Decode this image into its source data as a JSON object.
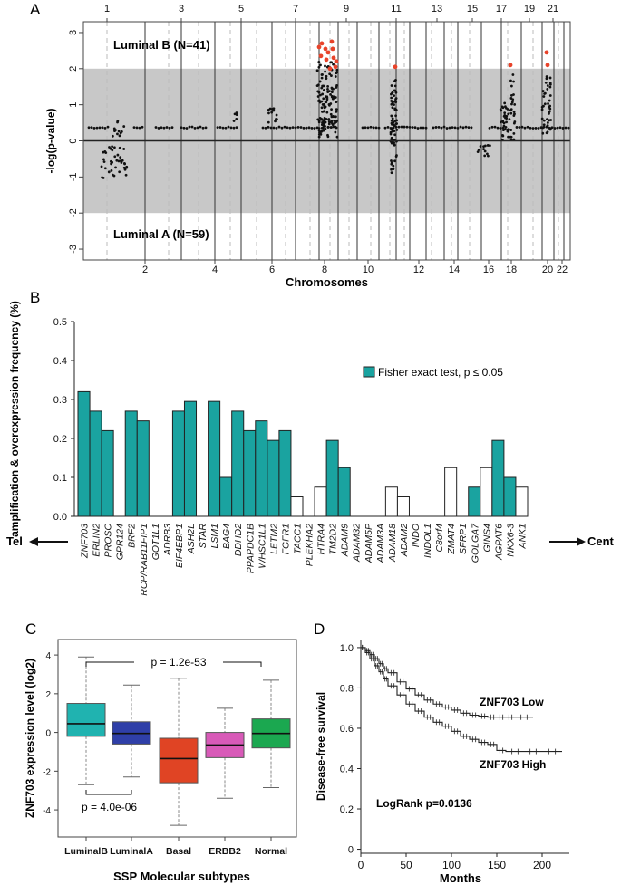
{
  "panels": {
    "a": "A",
    "b": "B",
    "c": "C",
    "d": "D"
  },
  "chart_data": [
    {
      "id": "A",
      "type": "scatter",
      "ylabel": "-log(p-value)",
      "xlabel": "Chromosomes",
      "ylim": [
        -3.3,
        3.3
      ],
      "yticks": [
        -3,
        -2,
        -1,
        0,
        1,
        2,
        3
      ],
      "band": [
        -2,
        2
      ],
      "top_label": "Luminal B (N=41)",
      "bottom_label": "Luminal A (N=59)",
      "chrom_top_labels": [
        "1",
        "3",
        "5",
        "7",
        "9",
        "11",
        "13",
        "15",
        "17",
        "19",
        "21"
      ],
      "chrom_bottom_labels": [
        "2",
        "4",
        "6",
        "8",
        "10",
        "12",
        "14",
        "16",
        "18",
        "20",
        "22"
      ],
      "highlight_color": "#e8432a",
      "band_color": "#c8c8c8"
    },
    {
      "id": "B",
      "type": "bar",
      "ylabel": "amplification & overexpression frequency (%)",
      "ylim": [
        0,
        0.5
      ],
      "yticks": [
        "0.0",
        "0.1",
        "0.2",
        "0.3",
        "0.4",
        "0.5"
      ],
      "legend": "Fisher exact test, p ≤ 0.05",
      "left_arrow": "Tel",
      "right_arrow": "Cent",
      "sig_color": "#1aa3a0",
      "categories": [
        "ZNF703",
        "ERLIN2",
        "PROSC",
        "GPR124",
        "BRF2",
        "RCP/RAB11FIP1",
        "GOT1L1",
        "ADRB3",
        "EIF4EBP1",
        "ASH2L",
        "STAR",
        "LSM1",
        "BAG4",
        "DDHD2",
        "PPAPDC1B",
        "WHSC1L1",
        "LETM2",
        "FGFR1",
        "TACC1",
        "PLEKHA2",
        "HTRA4",
        "TM2D2",
        "ADAM9",
        "ADAM32",
        "ADAM5P",
        "ADAM3A",
        "ADAM18",
        "ADAM2",
        "INDO",
        "INDOL1",
        "C8orf4",
        "ZMAT4",
        "SFRP1",
        "GOLGA7",
        "GINS4",
        "AGPAT6",
        "NKX6-3",
        "ANK1"
      ],
      "values": [
        0.32,
        0.27,
        0.22,
        0,
        0.27,
        0.245,
        0,
        0,
        0.27,
        0.295,
        0,
        0.295,
        0.1,
        0.27,
        0.22,
        0.245,
        0.195,
        0.22,
        0.05,
        0,
        0.075,
        0.195,
        0.125,
        0,
        0,
        0,
        0.075,
        0.05,
        0,
        0,
        0,
        0.125,
        0,
        0.075,
        0.125,
        0.195,
        0.1,
        0.075
      ],
      "significant": [
        true,
        true,
        true,
        false,
        true,
        true,
        false,
        false,
        true,
        true,
        false,
        true,
        true,
        true,
        true,
        true,
        true,
        true,
        false,
        false,
        false,
        true,
        true,
        false,
        false,
        false,
        false,
        false,
        false,
        false,
        false,
        false,
        false,
        true,
        false,
        true,
        true,
        false
      ]
    },
    {
      "id": "C",
      "type": "box",
      "ylabel": "ZNF703 expression level (log2)",
      "xlabel": "SSP Molecular subtypes",
      "ylim": [
        -5.4,
        4.8
      ],
      "yticks": [
        -4,
        -2,
        0,
        2,
        4
      ],
      "categories": [
        "LuminalB",
        "LuminalA",
        "Basal",
        "ERBB2",
        "Normal"
      ],
      "colors": [
        "#20b3b0",
        "#2f3fa8",
        "#e04424",
        "#d85ab8",
        "#1ba850"
      ],
      "boxes": [
        {
          "min": -2.7,
          "q1": -0.2,
          "median": 0.45,
          "q3": 1.5,
          "max": 3.9
        },
        {
          "min": -2.3,
          "q1": -0.6,
          "median": -0.05,
          "q3": 0.55,
          "max": 2.45
        },
        {
          "min": -4.8,
          "q1": -2.6,
          "median": -1.35,
          "q3": -0.3,
          "max": 2.8
        },
        {
          "min": -3.4,
          "q1": -1.3,
          "median": -0.65,
          "q3": 0.0,
          "max": 1.25
        },
        {
          "min": -2.85,
          "q1": -0.8,
          "median": -0.05,
          "q3": 0.7,
          "max": 2.7
        }
      ],
      "p_top": "p = 1.2e-53",
      "p_bottom": "p = 4.0e-06"
    },
    {
      "id": "D",
      "type": "line",
      "ylabel": "Disease-free survival",
      "xlabel": "Months",
      "xlim": [
        0,
        230
      ],
      "ylim": [
        -0.02,
        1.04
      ],
      "xticks": [
        0,
        50,
        100,
        150,
        200
      ],
      "yticks": [
        "0",
        "0.2",
        "0.4",
        "0.6",
        "0.8",
        "1.0"
      ],
      "series": [
        {
          "name": "ZNF703 Low",
          "x": [
            0,
            5,
            10,
            15,
            20,
            25,
            30,
            40,
            50,
            60,
            70,
            80,
            90,
            100,
            110,
            120,
            130,
            140,
            150,
            160,
            170,
            190
          ],
          "y": [
            1.0,
            0.985,
            0.965,
            0.945,
            0.92,
            0.895,
            0.875,
            0.83,
            0.795,
            0.765,
            0.74,
            0.72,
            0.705,
            0.69,
            0.675,
            0.665,
            0.66,
            0.655,
            0.655,
            0.655,
            0.655,
            0.655
          ]
        },
        {
          "name": "ZNF703 High",
          "x": [
            0,
            5,
            10,
            15,
            20,
            25,
            30,
            40,
            50,
            60,
            70,
            80,
            90,
            100,
            110,
            120,
            130,
            140,
            150,
            160,
            180,
            200,
            222
          ],
          "y": [
            1.0,
            0.975,
            0.945,
            0.91,
            0.88,
            0.845,
            0.81,
            0.765,
            0.72,
            0.685,
            0.655,
            0.63,
            0.61,
            0.585,
            0.56,
            0.545,
            0.53,
            0.52,
            0.49,
            0.485,
            0.485,
            0.485,
            0.485
          ]
        }
      ],
      "annotation": "LogRank p=0.0136"
    }
  ]
}
